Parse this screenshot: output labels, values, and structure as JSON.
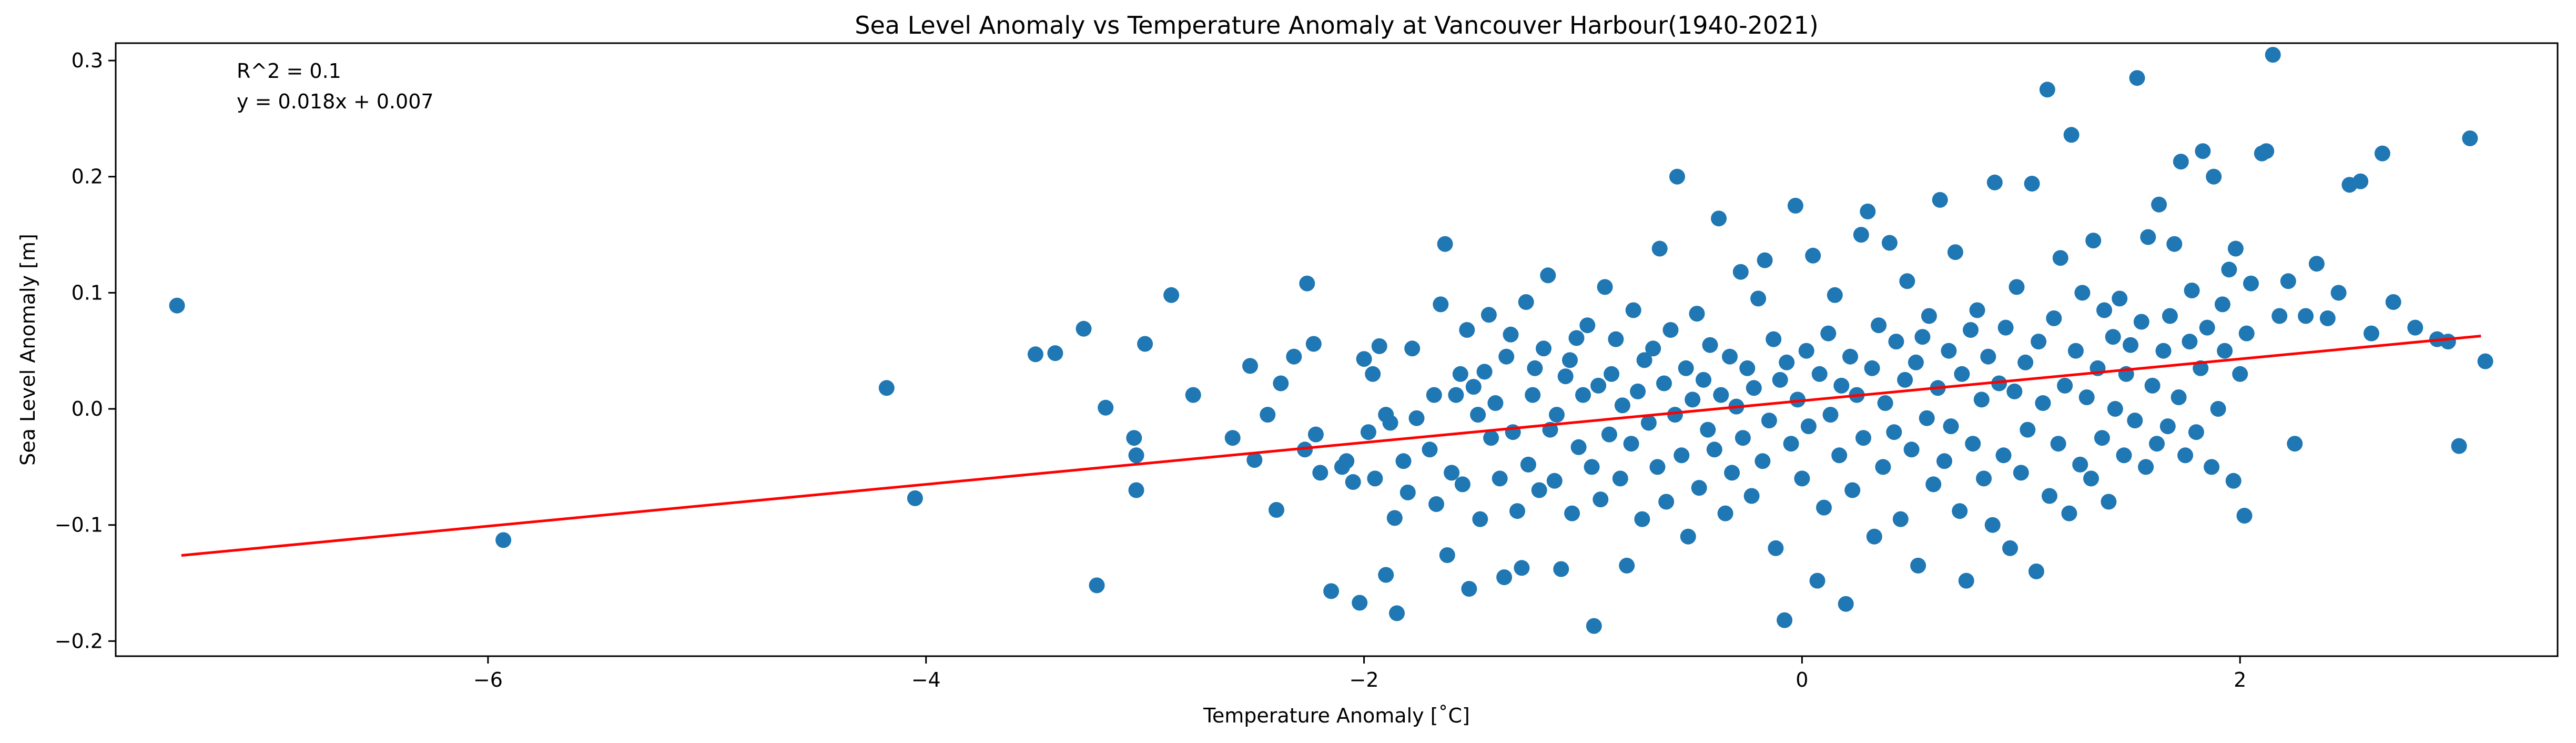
{
  "chart_data": {
    "type": "scatter",
    "title": "Sea Level Anomaly vs Temperature Anomaly at Vancouver Harbour(1940-2021)",
    "xlabel": "Temperature Anomaly [˚C]",
    "ylabel": "Sea Level Anomaly [m]",
    "xlim": [
      -7.7,
      3.45
    ],
    "ylim": [
      -0.213,
      0.315
    ],
    "xticks": [
      -6,
      -4,
      -2,
      0,
      2
    ],
    "yticks": [
      -0.2,
      -0.1,
      0.0,
      0.1,
      0.2,
      0.3
    ],
    "xtick_labels": [
      "−6",
      "−4",
      "−2",
      "0",
      "2"
    ],
    "ytick_labels": [
      "−0.2",
      "−0.1",
      "0.0",
      "0.1",
      "0.2",
      "0.3"
    ],
    "grid": false,
    "annotations": [
      "R^2 = 0.1",
      "y = 0.018x + 0.007"
    ],
    "colors": {
      "points": "#1f77b4",
      "fit": "#ff0000"
    },
    "fit_line": {
      "slope": 0.018,
      "intercept": 0.007,
      "x_range": [
        -7.4,
        3.1
      ]
    },
    "points": [
      [
        -7.42,
        0.089
      ],
      [
        -5.93,
        -0.113
      ],
      [
        -4.18,
        0.018
      ],
      [
        -4.05,
        -0.077
      ],
      [
        -3.5,
        0.047
      ],
      [
        -3.41,
        0.048
      ],
      [
        -3.28,
        0.069
      ],
      [
        -3.22,
        -0.152
      ],
      [
        -3.18,
        0.001
      ],
      [
        -3.05,
        -0.025
      ],
      [
        -3.04,
        -0.04
      ],
      [
        -3.04,
        -0.07
      ],
      [
        -3.0,
        0.056
      ],
      [
        -2.88,
        0.098
      ],
      [
        -2.78,
        0.012
      ],
      [
        -2.6,
        -0.025
      ],
      [
        -2.52,
        0.037
      ],
      [
        -2.5,
        -0.044
      ],
      [
        -2.44,
        -0.005
      ],
      [
        -2.4,
        -0.087
      ],
      [
        -2.38,
        0.022
      ],
      [
        -2.32,
        0.045
      ],
      [
        -2.27,
        -0.035
      ],
      [
        -2.26,
        0.108
      ],
      [
        -2.23,
        0.056
      ],
      [
        -2.22,
        -0.022
      ],
      [
        -2.2,
        -0.055
      ],
      [
        -2.15,
        -0.157
      ],
      [
        -2.1,
        -0.05
      ],
      [
        -2.08,
        -0.045
      ],
      [
        -2.05,
        -0.063
      ],
      [
        -2.02,
        -0.167
      ],
      [
        -2.0,
        0.043
      ],
      [
        -1.98,
        -0.02
      ],
      [
        -1.96,
        0.03
      ],
      [
        -1.95,
        -0.06
      ],
      [
        -1.93,
        0.054
      ],
      [
        -1.9,
        -0.005
      ],
      [
        -1.9,
        -0.143
      ],
      [
        -1.88,
        -0.012
      ],
      [
        -1.86,
        -0.094
      ],
      [
        -1.85,
        -0.176
      ],
      [
        -1.82,
        -0.045
      ],
      [
        -1.8,
        -0.072
      ],
      [
        -1.78,
        0.052
      ],
      [
        -1.76,
        -0.008
      ],
      [
        -1.7,
        -0.035
      ],
      [
        -1.68,
        0.012
      ],
      [
        -1.67,
        -0.082
      ],
      [
        -1.65,
        0.09
      ],
      [
        -1.63,
        0.142
      ],
      [
        -1.62,
        -0.126
      ],
      [
        -1.6,
        -0.055
      ],
      [
        -1.58,
        0.012
      ],
      [
        -1.56,
        0.03
      ],
      [
        -1.55,
        -0.065
      ],
      [
        -1.53,
        0.068
      ],
      [
        -1.52,
        -0.155
      ],
      [
        -1.5,
        0.019
      ],
      [
        -1.48,
        -0.005
      ],
      [
        -1.47,
        -0.095
      ],
      [
        -1.45,
        0.032
      ],
      [
        -1.43,
        0.081
      ],
      [
        -1.42,
        -0.025
      ],
      [
        -1.4,
        0.005
      ],
      [
        -1.38,
        -0.06
      ],
      [
        -1.36,
        -0.145
      ],
      [
        -1.35,
        0.045
      ],
      [
        -1.33,
        0.064
      ],
      [
        -1.32,
        -0.02
      ],
      [
        -1.3,
        -0.088
      ],
      [
        -1.28,
        -0.137
      ],
      [
        -1.26,
        0.092
      ],
      [
        -1.25,
        -0.048
      ],
      [
        -1.23,
        0.012
      ],
      [
        -1.22,
        0.035
      ],
      [
        -1.2,
        -0.07
      ],
      [
        -1.18,
        0.052
      ],
      [
        -1.16,
        0.115
      ],
      [
        -1.15,
        -0.018
      ],
      [
        -1.13,
        -0.062
      ],
      [
        -1.12,
        -0.005
      ],
      [
        -1.1,
        -0.138
      ],
      [
        -1.08,
        0.028
      ],
      [
        -1.06,
        0.042
      ],
      [
        -1.05,
        -0.09
      ],
      [
        -1.03,
        0.061
      ],
      [
        -1.02,
        -0.033
      ],
      [
        -1.0,
        0.012
      ],
      [
        -0.98,
        0.072
      ],
      [
        -0.96,
        -0.05
      ],
      [
        -0.95,
        -0.187
      ],
      [
        -0.93,
        0.02
      ],
      [
        -0.92,
        -0.078
      ],
      [
        -0.9,
        0.105
      ],
      [
        -0.88,
        -0.022
      ],
      [
        -0.87,
        0.03
      ],
      [
        -0.85,
        0.06
      ],
      [
        -0.83,
        -0.06
      ],
      [
        -0.82,
        0.003
      ],
      [
        -0.8,
        -0.135
      ],
      [
        -0.78,
        -0.03
      ],
      [
        -0.77,
        0.085
      ],
      [
        -0.75,
        0.015
      ],
      [
        -0.73,
        -0.095
      ],
      [
        -0.72,
        0.042
      ],
      [
        -0.7,
        -0.012
      ],
      [
        -0.68,
        0.052
      ],
      [
        -0.66,
        -0.05
      ],
      [
        -0.65,
        0.138
      ],
      [
        -0.63,
        0.022
      ],
      [
        -0.62,
        -0.08
      ],
      [
        -0.6,
        0.068
      ],
      [
        -0.58,
        -0.005
      ],
      [
        -0.57,
        0.2
      ],
      [
        -0.55,
        -0.04
      ],
      [
        -0.53,
        0.035
      ],
      [
        -0.52,
        -0.11
      ],
      [
        -0.5,
        0.008
      ],
      [
        -0.48,
        0.082
      ],
      [
        -0.47,
        -0.068
      ],
      [
        -0.45,
        0.025
      ],
      [
        -0.43,
        -0.018
      ],
      [
        -0.42,
        0.055
      ],
      [
        -0.4,
        -0.035
      ],
      [
        -0.38,
        0.164
      ],
      [
        -0.37,
        0.012
      ],
      [
        -0.35,
        -0.09
      ],
      [
        -0.33,
        0.045
      ],
      [
        -0.32,
        -0.055
      ],
      [
        -0.3,
        0.002
      ],
      [
        -0.28,
        0.118
      ],
      [
        -0.27,
        -0.025
      ],
      [
        -0.25,
        0.035
      ],
      [
        -0.23,
        -0.075
      ],
      [
        -0.22,
        0.018
      ],
      [
        -0.2,
        0.095
      ],
      [
        -0.18,
        -0.045
      ],
      [
        -0.17,
        0.128
      ],
      [
        -0.15,
        -0.01
      ],
      [
        -0.13,
        0.06
      ],
      [
        -0.12,
        -0.12
      ],
      [
        -0.1,
        0.025
      ],
      [
        -0.08,
        -0.182
      ],
      [
        -0.07,
        0.04
      ],
      [
        -0.05,
        -0.03
      ],
      [
        -0.03,
        0.175
      ],
      [
        -0.02,
        0.008
      ],
      [
        0.0,
        -0.06
      ],
      [
        0.02,
        0.05
      ],
      [
        0.03,
        -0.015
      ],
      [
        0.05,
        0.132
      ],
      [
        0.07,
        -0.148
      ],
      [
        0.08,
        0.03
      ],
      [
        0.1,
        -0.085
      ],
      [
        0.12,
        0.065
      ],
      [
        0.13,
        -0.005
      ],
      [
        0.15,
        0.098
      ],
      [
        0.17,
        -0.04
      ],
      [
        0.18,
        0.02
      ],
      [
        0.2,
        -0.168
      ],
      [
        0.22,
        0.045
      ],
      [
        0.23,
        -0.07
      ],
      [
        0.25,
        0.012
      ],
      [
        0.27,
        0.15
      ],
      [
        0.28,
        -0.025
      ],
      [
        0.3,
        0.17
      ],
      [
        0.32,
        0.035
      ],
      [
        0.33,
        -0.11
      ],
      [
        0.35,
        0.072
      ],
      [
        0.37,
        -0.05
      ],
      [
        0.38,
        0.005
      ],
      [
        0.4,
        0.143
      ],
      [
        0.42,
        -0.02
      ],
      [
        0.43,
        0.058
      ],
      [
        0.45,
        -0.095
      ],
      [
        0.47,
        0.025
      ],
      [
        0.48,
        0.11
      ],
      [
        0.5,
        -0.035
      ],
      [
        0.52,
        0.04
      ],
      [
        0.53,
        -0.135
      ],
      [
        0.55,
        0.062
      ],
      [
        0.57,
        -0.008
      ],
      [
        0.58,
        0.08
      ],
      [
        0.6,
        -0.065
      ],
      [
        0.62,
        0.018
      ],
      [
        0.63,
        0.18
      ],
      [
        0.65,
        -0.045
      ],
      [
        0.67,
        0.05
      ],
      [
        0.68,
        -0.015
      ],
      [
        0.7,
        0.135
      ],
      [
        0.72,
        -0.088
      ],
      [
        0.73,
        0.03
      ],
      [
        0.75,
        -0.148
      ],
      [
        0.77,
        0.068
      ],
      [
        0.78,
        -0.03
      ],
      [
        0.8,
        0.085
      ],
      [
        0.82,
        0.008
      ],
      [
        0.83,
        -0.06
      ],
      [
        0.85,
        0.045
      ],
      [
        0.87,
        -0.1
      ],
      [
        0.88,
        0.195
      ],
      [
        0.9,
        0.022
      ],
      [
        0.92,
        -0.04
      ],
      [
        0.93,
        0.07
      ],
      [
        0.95,
        -0.12
      ],
      [
        0.97,
        0.015
      ],
      [
        0.98,
        0.105
      ],
      [
        1.0,
        -0.055
      ],
      [
        1.02,
        0.04
      ],
      [
        1.03,
        -0.018
      ],
      [
        1.05,
        0.194
      ],
      [
        1.07,
        -0.14
      ],
      [
        1.08,
        0.058
      ],
      [
        1.1,
        0.005
      ],
      [
        1.12,
        0.275
      ],
      [
        1.13,
        -0.075
      ],
      [
        1.15,
        0.078
      ],
      [
        1.17,
        -0.03
      ],
      [
        1.18,
        0.13
      ],
      [
        1.2,
        0.02
      ],
      [
        1.22,
        -0.09
      ],
      [
        1.23,
        0.236
      ],
      [
        1.25,
        0.05
      ],
      [
        1.27,
        -0.048
      ],
      [
        1.28,
        0.1
      ],
      [
        1.3,
        0.01
      ],
      [
        1.32,
        -0.06
      ],
      [
        1.33,
        0.145
      ],
      [
        1.35,
        0.035
      ],
      [
        1.37,
        -0.025
      ],
      [
        1.38,
        0.085
      ],
      [
        1.4,
        -0.08
      ],
      [
        1.42,
        0.062
      ],
      [
        1.43,
        0.0
      ],
      [
        1.45,
        0.095
      ],
      [
        1.47,
        -0.04
      ],
      [
        1.48,
        0.03
      ],
      [
        1.5,
        0.055
      ],
      [
        1.52,
        -0.01
      ],
      [
        1.53,
        0.285
      ],
      [
        1.55,
        0.075
      ],
      [
        1.57,
        -0.05
      ],
      [
        1.58,
        0.148
      ],
      [
        1.6,
        0.02
      ],
      [
        1.62,
        -0.03
      ],
      [
        1.63,
        0.176
      ],
      [
        1.65,
        0.05
      ],
      [
        1.67,
        -0.015
      ],
      [
        1.68,
        0.08
      ],
      [
        1.7,
        0.142
      ],
      [
        1.72,
        0.01
      ],
      [
        1.73,
        0.213
      ],
      [
        1.75,
        -0.04
      ],
      [
        1.77,
        0.058
      ],
      [
        1.78,
        0.102
      ],
      [
        1.8,
        -0.02
      ],
      [
        1.82,
        0.035
      ],
      [
        1.83,
        0.222
      ],
      [
        1.85,
        0.07
      ],
      [
        1.87,
        -0.05
      ],
      [
        1.88,
        0.2
      ],
      [
        1.9,
        0.0
      ],
      [
        1.92,
        0.09
      ],
      [
        1.93,
        0.05
      ],
      [
        1.95,
        0.12
      ],
      [
        1.97,
        -0.062
      ],
      [
        1.98,
        0.138
      ],
      [
        2.0,
        0.03
      ],
      [
        2.02,
        -0.092
      ],
      [
        2.03,
        0.065
      ],
      [
        2.05,
        0.108
      ],
      [
        2.1,
        0.22
      ],
      [
        2.12,
        0.222
      ],
      [
        2.15,
        0.305
      ],
      [
        2.18,
        0.08
      ],
      [
        2.22,
        0.11
      ],
      [
        2.25,
        -0.03
      ],
      [
        2.3,
        0.08
      ],
      [
        2.35,
        0.125
      ],
      [
        2.4,
        0.078
      ],
      [
        2.45,
        0.1
      ],
      [
        2.5,
        0.193
      ],
      [
        2.55,
        0.196
      ],
      [
        2.6,
        0.065
      ],
      [
        2.65,
        0.22
      ],
      [
        2.7,
        0.092
      ],
      [
        2.8,
        0.07
      ],
      [
        2.9,
        0.06
      ],
      [
        2.95,
        0.058
      ],
      [
        3.0,
        -0.032
      ],
      [
        3.05,
        0.233
      ],
      [
        3.12,
        0.041
      ]
    ]
  }
}
